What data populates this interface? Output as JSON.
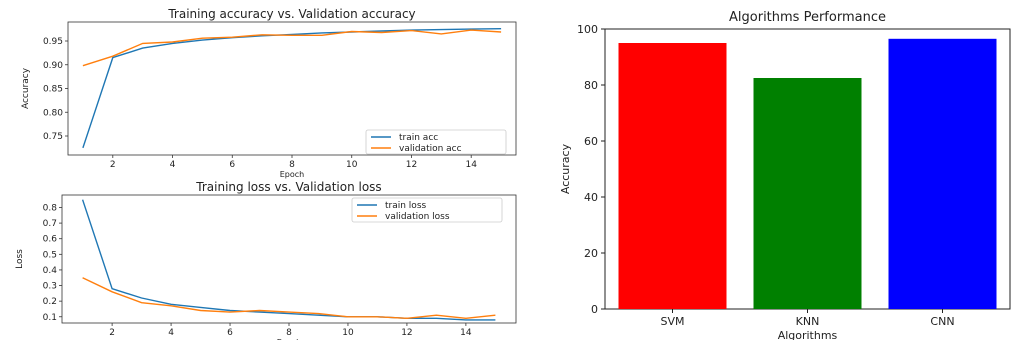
{
  "chart_data": [
    {
      "type": "line",
      "title": "Training accuracy vs. Validation accuracy",
      "xlabel": "Epoch",
      "ylabel": "Accuracy",
      "xlim": [
        0.5,
        15.5
      ],
      "ylim": [
        0.71,
        0.99
      ],
      "xticks": [
        2,
        4,
        6,
        8,
        10,
        12,
        14
      ],
      "yticks": [
        0.75,
        0.8,
        0.85,
        0.9,
        0.95
      ],
      "legend_position": "lower-right",
      "x": [
        1,
        2,
        3,
        4,
        5,
        6,
        7,
        8,
        9,
        10,
        11,
        12,
        13,
        14,
        15
      ],
      "series": [
        {
          "name": "train acc",
          "color": "#1f77b4",
          "values": [
            0.725,
            0.915,
            0.935,
            0.945,
            0.952,
            0.957,
            0.961,
            0.964,
            0.967,
            0.969,
            0.971,
            0.973,
            0.974,
            0.975,
            0.976
          ]
        },
        {
          "name": "validation acc",
          "color": "#ff7f0e",
          "values": [
            0.898,
            0.918,
            0.945,
            0.948,
            0.956,
            0.958,
            0.963,
            0.962,
            0.962,
            0.97,
            0.968,
            0.972,
            0.965,
            0.973,
            0.969
          ]
        }
      ]
    },
    {
      "type": "line",
      "title": "Training loss vs. Validation loss",
      "xlabel": "Epoch",
      "ylabel": "Loss",
      "xlim": [
        0.3,
        15.7
      ],
      "ylim": [
        0.06,
        0.88
      ],
      "xticks": [
        2,
        4,
        6,
        8,
        10,
        12,
        14
      ],
      "yticks": [
        0.1,
        0.2,
        0.3,
        0.4,
        0.5,
        0.6,
        0.7,
        0.8
      ],
      "legend_position": "upper-right",
      "x": [
        1,
        2,
        3,
        4,
        5,
        6,
        7,
        8,
        9,
        10,
        11,
        12,
        13,
        14,
        15
      ],
      "series": [
        {
          "name": "train loss",
          "color": "#1f77b4",
          "values": [
            0.85,
            0.28,
            0.22,
            0.18,
            0.16,
            0.14,
            0.13,
            0.12,
            0.11,
            0.1,
            0.1,
            0.09,
            0.09,
            0.08,
            0.08
          ]
        },
        {
          "name": "validation loss",
          "color": "#ff7f0e",
          "values": [
            0.35,
            0.26,
            0.19,
            0.17,
            0.14,
            0.13,
            0.14,
            0.13,
            0.12,
            0.1,
            0.1,
            0.09,
            0.11,
            0.09,
            0.11
          ]
        }
      ]
    },
    {
      "type": "bar",
      "title": "Algorithms Performance",
      "xlabel": "Algorithms",
      "ylabel": "Accuracy",
      "ylim": [
        0,
        100
      ],
      "yticks": [
        0,
        20,
        40,
        60,
        80,
        100
      ],
      "categories": [
        "SVM",
        "KNN",
        "CNN"
      ],
      "values": [
        95,
        82.5,
        96.5
      ],
      "colors": [
        "#ff0000",
        "#008000",
        "#0000ff"
      ]
    }
  ]
}
